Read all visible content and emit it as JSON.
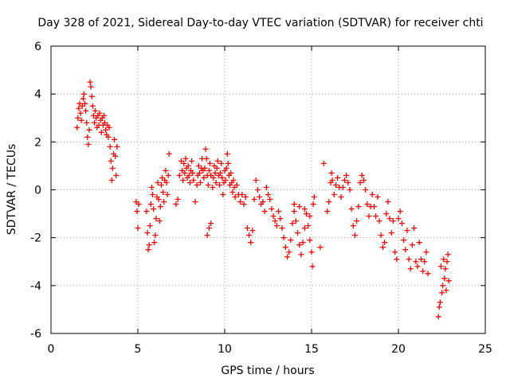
{
  "chart_data": {
    "type": "scatter",
    "title": "Day 328 of 2021, Sidereal Day-to-day VTEC variation (SDTVAR) for receiver chti",
    "xlabel": "GPS time / hours",
    "ylabel": "SDTVAR / TECUs",
    "xlim": [
      0,
      25
    ],
    "ylim": [
      -6,
      6
    ],
    "xticks": [
      0,
      5,
      10,
      15,
      20,
      25
    ],
    "yticks": [
      -6,
      -4,
      -2,
      0,
      2,
      4,
      6
    ],
    "xtick_labels": [
      "0",
      "5",
      "10",
      "15",
      "20",
      "25"
    ],
    "ytick_labels": [
      "-6",
      "-4",
      "-2",
      "0",
      "2",
      "4",
      "6"
    ],
    "grid": true,
    "marker": "plus",
    "series_color": "#ff0000",
    "series": [
      {
        "name": "SDTVAR",
        "points": [
          [
            1.5,
            2.6
          ],
          [
            1.55,
            3.0
          ],
          [
            1.6,
            3.4
          ],
          [
            1.65,
            3.6
          ],
          [
            1.7,
            3.2
          ],
          [
            1.75,
            2.9
          ],
          [
            1.8,
            3.5
          ],
          [
            1.85,
            3.8
          ],
          [
            1.9,
            4.0
          ],
          [
            1.95,
            3.6
          ],
          [
            2.0,
            3.3
          ],
          [
            2.05,
            2.8
          ],
          [
            2.1,
            2.2
          ],
          [
            2.15,
            1.9
          ],
          [
            2.2,
            2.5
          ],
          [
            2.25,
            4.5
          ],
          [
            2.3,
            4.3
          ],
          [
            2.35,
            3.9
          ],
          [
            2.4,
            3.5
          ],
          [
            2.45,
            3.1
          ],
          [
            2.5,
            2.8
          ],
          [
            2.55,
            3.3
          ],
          [
            2.6,
            3.0
          ],
          [
            2.65,
            2.6
          ],
          [
            2.7,
            3.1
          ],
          [
            2.75,
            2.7
          ],
          [
            2.8,
            3.2
          ],
          [
            2.85,
            2.9
          ],
          [
            2.9,
            2.4
          ],
          [
            2.95,
            3.0
          ],
          [
            3.0,
            2.7
          ],
          [
            3.05,
            3.1
          ],
          [
            3.1,
            2.8
          ],
          [
            3.15,
            2.5
          ],
          [
            3.2,
            2.3
          ],
          [
            3.25,
            2.7
          ],
          [
            3.3,
            2.2
          ],
          [
            3.35,
            2.6
          ],
          [
            3.4,
            1.8
          ],
          [
            3.45,
            1.2
          ],
          [
            3.5,
            0.4
          ],
          [
            3.55,
            0.9
          ],
          [
            3.6,
            1.5
          ],
          [
            3.65,
            2.1
          ],
          [
            3.7,
            1.4
          ],
          [
            3.75,
            0.6
          ],
          [
            3.8,
            1.8
          ],
          [
            4.9,
            -0.5
          ],
          [
            4.95,
            -0.9
          ],
          [
            5.0,
            -1.6
          ],
          [
            5.05,
            -0.6
          ],
          [
            5.5,
            -0.9
          ],
          [
            5.55,
            -1.8
          ],
          [
            5.6,
            -2.5
          ],
          [
            5.65,
            -2.3
          ],
          [
            5.7,
            -1.5
          ],
          [
            5.75,
            -0.6
          ],
          [
            5.8,
            0.1
          ],
          [
            5.85,
            -0.2
          ],
          [
            5.9,
            -0.8
          ],
          [
            5.95,
            -2.2
          ],
          [
            6.0,
            -1.9
          ],
          [
            6.05,
            -1.2
          ],
          [
            6.1,
            -0.3
          ],
          [
            6.15,
            0.3
          ],
          [
            6.2,
            -0.4
          ],
          [
            6.25,
            -1.3
          ],
          [
            6.3,
            -0.7
          ],
          [
            6.35,
            0.2
          ],
          [
            6.4,
            0.5
          ],
          [
            6.45,
            -0.1
          ],
          [
            6.5,
            -0.5
          ],
          [
            6.55,
            0.4
          ],
          [
            6.6,
            0.8
          ],
          [
            6.65,
            0.3
          ],
          [
            6.7,
            -0.2
          ],
          [
            6.75,
            0.6
          ],
          [
            6.8,
            1.5
          ],
          [
            7.2,
            -0.6
          ],
          [
            7.3,
            -0.4
          ],
          [
            7.4,
            0.6
          ],
          [
            7.5,
            1.2
          ],
          [
            7.55,
            0.8
          ],
          [
            7.6,
            0.4
          ],
          [
            7.65,
            1.1
          ],
          [
            7.7,
            0.7
          ],
          [
            7.75,
            1.3
          ],
          [
            7.8,
            0.9
          ],
          [
            7.85,
            0.5
          ],
          [
            7.9,
            1.0
          ],
          [
            7.95,
            0.6
          ],
          [
            8.0,
            0.3
          ],
          [
            8.05,
            0.8
          ],
          [
            8.1,
            1.2
          ],
          [
            8.15,
            0.7
          ],
          [
            8.2,
            0.4
          ],
          [
            8.3,
            -0.5
          ],
          [
            8.4,
            0.2
          ],
          [
            8.45,
            0.6
          ],
          [
            8.5,
            1.0
          ],
          [
            8.55,
            0.7
          ],
          [
            8.6,
            0.3
          ],
          [
            8.65,
            0.9
          ],
          [
            8.7,
            1.3
          ],
          [
            8.75,
            0.8
          ],
          [
            8.8,
            0.5
          ],
          [
            8.85,
            0.9
          ],
          [
            8.9,
            1.7
          ],
          [
            8.95,
            1.3
          ],
          [
            9.0,
            0.6
          ],
          [
            9.0,
            -1.9
          ],
          [
            9.1,
            -1.6
          ],
          [
            9.2,
            -1.4
          ],
          [
            9.05,
            0.2
          ],
          [
            9.1,
            0.8
          ],
          [
            9.15,
            1.1
          ],
          [
            9.2,
            0.6
          ],
          [
            9.3,
            0.1
          ],
          [
            9.35,
            0.5
          ],
          [
            9.4,
            1.0
          ],
          [
            9.45,
            0.7
          ],
          [
            9.5,
            0.3
          ],
          [
            9.55,
            0.9
          ],
          [
            9.6,
            1.2
          ],
          [
            9.65,
            0.6
          ],
          [
            9.7,
            0.2
          ],
          [
            9.75,
            0.7
          ],
          [
            9.8,
            1.1
          ],
          [
            9.85,
            0.5
          ],
          [
            9.9,
            -0.2
          ],
          [
            9.95,
            0.3
          ],
          [
            10.0,
            0.8
          ],
          [
            10.05,
            0.4
          ],
          [
            10.1,
            0.9
          ],
          [
            10.15,
            1.5
          ],
          [
            10.2,
            1.1
          ],
          [
            10.25,
            0.6
          ],
          [
            10.3,
            0.2
          ],
          [
            10.35,
            0.7
          ],
          [
            10.4,
            0.3
          ],
          [
            10.45,
            -0.1
          ],
          [
            10.5,
            0.4
          ],
          [
            10.55,
            0.1
          ],
          [
            10.6,
            -0.3
          ],
          [
            10.7,
            0.2
          ],
          [
            10.8,
            -0.2
          ],
          [
            10.9,
            -0.5
          ],
          [
            11.0,
            -0.2
          ],
          [
            11.1,
            -0.6
          ],
          [
            11.2,
            -0.3
          ],
          [
            11.3,
            -1.6
          ],
          [
            11.4,
            -1.9
          ],
          [
            11.5,
            -2.2
          ],
          [
            11.6,
            -1.7
          ],
          [
            11.7,
            -0.4
          ],
          [
            11.8,
            0.4
          ],
          [
            11.9,
            0.0
          ],
          [
            12.0,
            -0.3
          ],
          [
            12.1,
            -0.6
          ],
          [
            12.2,
            -0.5
          ],
          [
            12.3,
            -0.9
          ],
          [
            12.4,
            0.1
          ],
          [
            12.5,
            -0.2
          ],
          [
            12.6,
            -0.4
          ],
          [
            12.7,
            -0.8
          ],
          [
            12.8,
            -1.1
          ],
          [
            12.9,
            -1.3
          ],
          [
            13.0,
            -1.5
          ],
          [
            13.1,
            -0.9
          ],
          [
            13.2,
            -1.2
          ],
          [
            13.3,
            -1.6
          ],
          [
            13.4,
            -2.0
          ],
          [
            13.5,
            -2.4
          ],
          [
            13.6,
            -2.8
          ],
          [
            13.7,
            -2.6
          ],
          [
            13.8,
            -2.1
          ],
          [
            13.9,
            -1.4
          ],
          [
            14.0,
            -0.9
          ],
          [
            14.1,
            -1.3
          ],
          [
            14.2,
            -1.8
          ],
          [
            14.3,
            -2.3
          ],
          [
            14.4,
            -2.7
          ],
          [
            14.5,
            -2.2
          ],
          [
            14.6,
            -1.6
          ],
          [
            14.7,
            -1.0
          ],
          [
            14.8,
            -1.5
          ],
          [
            14.9,
            -2.1
          ],
          [
            15.0,
            -2.6
          ],
          [
            15.05,
            -3.2
          ],
          [
            15.1,
            -0.6
          ],
          [
            15.15,
            -0.3
          ],
          [
            14.9,
            -1.1
          ],
          [
            14.6,
            -0.8
          ],
          [
            14.3,
            -0.7
          ],
          [
            14.0,
            -0.6
          ],
          [
            15.5,
            -2.4
          ],
          [
            15.7,
            1.1
          ],
          [
            15.9,
            -0.9
          ],
          [
            16.0,
            -0.5
          ],
          [
            16.1,
            0.3
          ],
          [
            16.15,
            0.7
          ],
          [
            16.2,
            0.4
          ],
          [
            16.3,
            -0.2
          ],
          [
            16.4,
            0.2
          ],
          [
            16.5,
            0.5
          ],
          [
            16.6,
            0.1
          ],
          [
            16.7,
            -0.3
          ],
          [
            16.8,
            0.1
          ],
          [
            16.9,
            0.4
          ],
          [
            17.0,
            0.6
          ],
          [
            17.1,
            0.3
          ],
          [
            17.2,
            0.0
          ],
          [
            17.3,
            -0.8
          ],
          [
            17.4,
            -1.5
          ],
          [
            17.5,
            -1.9
          ],
          [
            17.6,
            -1.3
          ],
          [
            17.7,
            -0.7
          ],
          [
            17.8,
            0.3
          ],
          [
            17.9,
            0.6
          ],
          [
            18.0,
            0.4
          ],
          [
            18.1,
            0.0
          ],
          [
            18.2,
            -0.6
          ],
          [
            18.3,
            -1.1
          ],
          [
            18.4,
            -0.7
          ],
          [
            18.5,
            -0.2
          ],
          [
            18.6,
            -0.7
          ],
          [
            18.7,
            -1.1
          ],
          [
            18.8,
            -0.3
          ],
          [
            18.9,
            -1.3
          ],
          [
            19.0,
            -1.9
          ],
          [
            19.1,
            -2.4
          ],
          [
            19.2,
            -2.2
          ],
          [
            19.3,
            -1.0
          ],
          [
            19.4,
            -0.5
          ],
          [
            19.5,
            -1.2
          ],
          [
            19.6,
            -1.8
          ],
          [
            19.7,
            -1.3
          ],
          [
            19.8,
            -2.6
          ],
          [
            19.9,
            -2.9
          ],
          [
            20.0,
            -1.2
          ],
          [
            20.1,
            -0.9
          ],
          [
            20.2,
            -1.4
          ],
          [
            20.3,
            -2.1
          ],
          [
            20.4,
            -2.5
          ],
          [
            20.5,
            -1.7
          ],
          [
            20.6,
            -2.9
          ],
          [
            20.7,
            -3.3
          ],
          [
            20.8,
            -2.3
          ],
          [
            20.9,
            -1.6
          ],
          [
            21.0,
            -3.0
          ],
          [
            21.1,
            -3.2
          ],
          [
            21.2,
            -2.2
          ],
          [
            21.3,
            -2.9
          ],
          [
            21.4,
            -3.4
          ],
          [
            21.5,
            -3.0
          ],
          [
            21.6,
            -2.6
          ],
          [
            21.7,
            -3.5
          ],
          [
            22.3,
            -5.3
          ],
          [
            22.35,
            -4.9
          ],
          [
            22.4,
            -4.7
          ],
          [
            22.45,
            -3.2
          ],
          [
            22.5,
            -4.3
          ],
          [
            22.55,
            -4.0
          ],
          [
            22.6,
            -2.9
          ],
          [
            22.65,
            -3.7
          ],
          [
            22.7,
            -3.3
          ],
          [
            22.75,
            -4.2
          ],
          [
            22.8,
            -3.0
          ],
          [
            22.85,
            -2.7
          ],
          [
            22.9,
            -3.8
          ]
        ]
      }
    ]
  }
}
